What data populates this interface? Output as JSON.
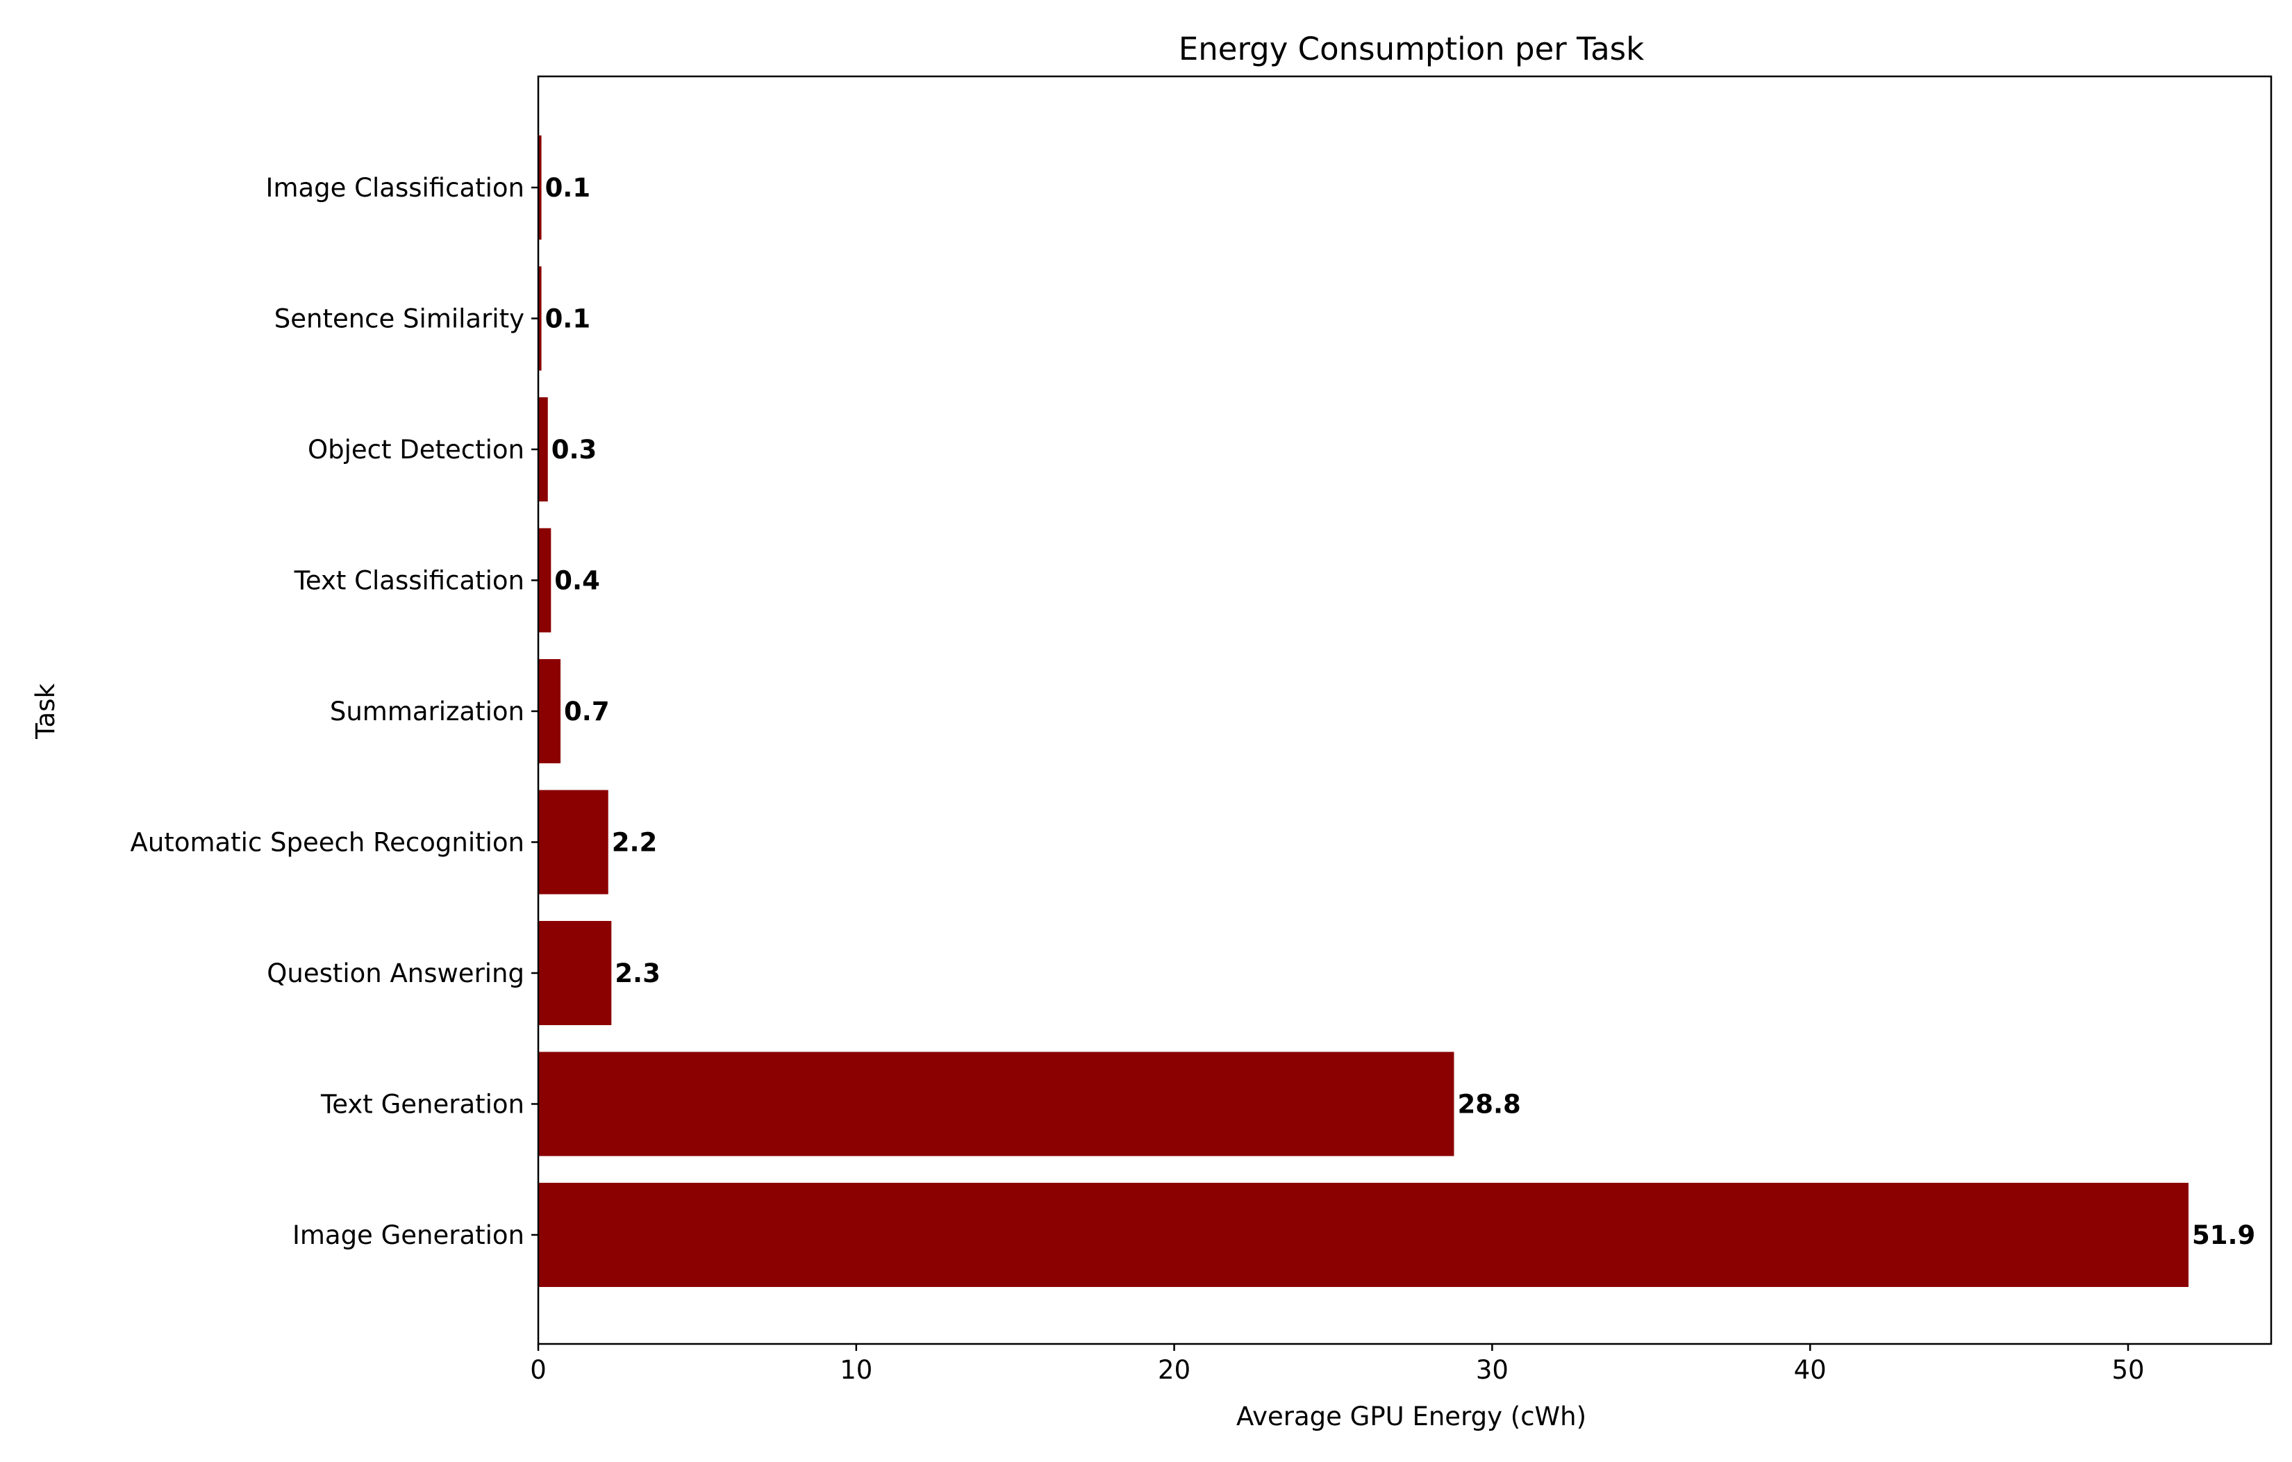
{
  "chart_data": {
    "type": "bar",
    "orientation": "horizontal",
    "title": "Energy Consumption per Task",
    "xlabel": "Average GPU Energy (cWh)",
    "ylabel": "Task",
    "categories": [
      "Image Generation",
      "Text Generation",
      "Question Answering",
      "Automatic Speech Recognition",
      "Summarization",
      "Text Classification",
      "Object Detection",
      "Sentence Similarity",
      "Image Classification"
    ],
    "values": [
      51.9,
      28.8,
      2.3,
      2.2,
      0.7,
      0.4,
      0.3,
      0.1,
      0.1
    ],
    "data_labels": [
      "51.9",
      "28.8",
      "2.3",
      "2.2",
      "0.7",
      "0.4",
      "0.3",
      "0.1",
      "0.1"
    ],
    "xlim": [
      0,
      54.5
    ],
    "xticks": [
      0,
      10,
      20,
      30,
      40,
      50
    ],
    "grid": false,
    "bar_color": "#8b0000"
  }
}
